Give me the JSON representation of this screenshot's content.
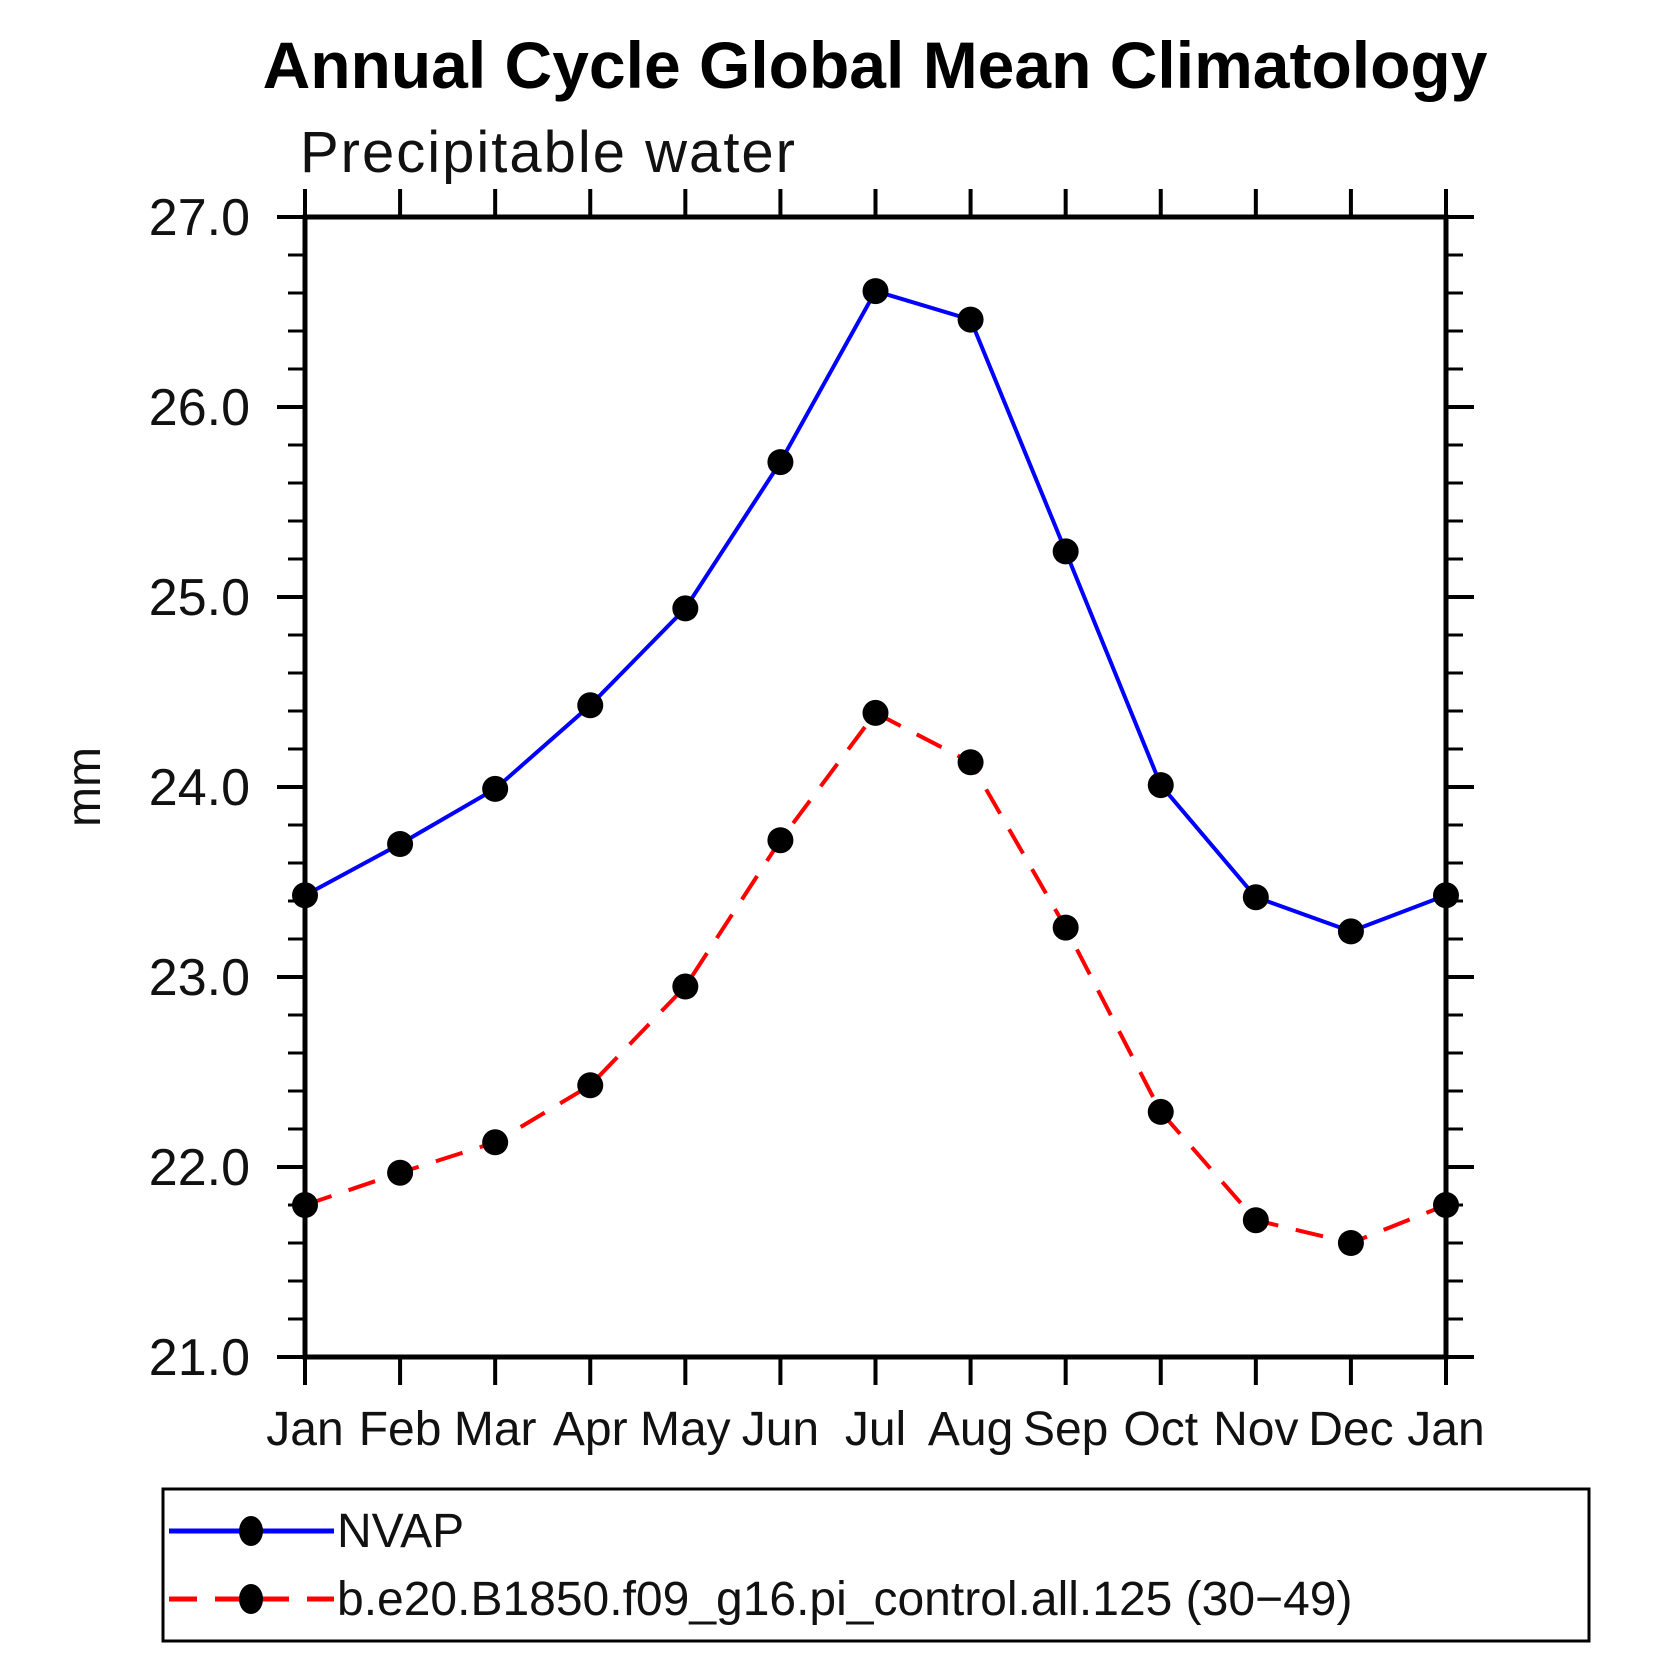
{
  "chart": {
    "title": "Annual Cycle Global Mean Climatology",
    "subtitle": "Precipitable water",
    "ylabel": "mm"
  },
  "chart_data": {
    "type": "line",
    "title": "Annual Cycle Global Mean Climatology",
    "subtitle": "Precipitable water",
    "xlabel": "",
    "ylabel": "mm",
    "ylim": [
      21.0,
      27.0
    ],
    "y_major_tick_step": 1.0,
    "y_minor_tick_step": 0.2,
    "y_tick_labels": [
      "21.0",
      "22.0",
      "23.0",
      "24.0",
      "25.0",
      "26.0",
      "27.0"
    ],
    "categories": [
      "Jan",
      "Feb",
      "Mar",
      "Apr",
      "May",
      "Jun",
      "Jul",
      "Aug",
      "Sep",
      "Oct",
      "Nov",
      "Dec",
      "Jan"
    ],
    "grid": false,
    "legend_position": "bottom-left-box",
    "series": [
      {
        "name": "NVAP",
        "line_color": "#0000ff",
        "line_style": "solid",
        "marker": "filled-circle",
        "marker_color": "#000000",
        "values": [
          23.43,
          23.7,
          23.99,
          24.43,
          24.94,
          25.71,
          26.61,
          26.46,
          25.24,
          24.01,
          23.42,
          23.24,
          23.43
        ]
      },
      {
        "name": "b.e20.B1850.f09_g16.pi_control.all.125 (30−49)",
        "line_color": "#ff0000",
        "line_style": "dashed",
        "marker": "filled-circle",
        "marker_color": "#000000",
        "values": [
          21.8,
          21.97,
          22.13,
          22.43,
          22.95,
          23.72,
          24.39,
          24.13,
          23.26,
          22.29,
          21.72,
          21.6,
          21.8
        ]
      }
    ]
  }
}
